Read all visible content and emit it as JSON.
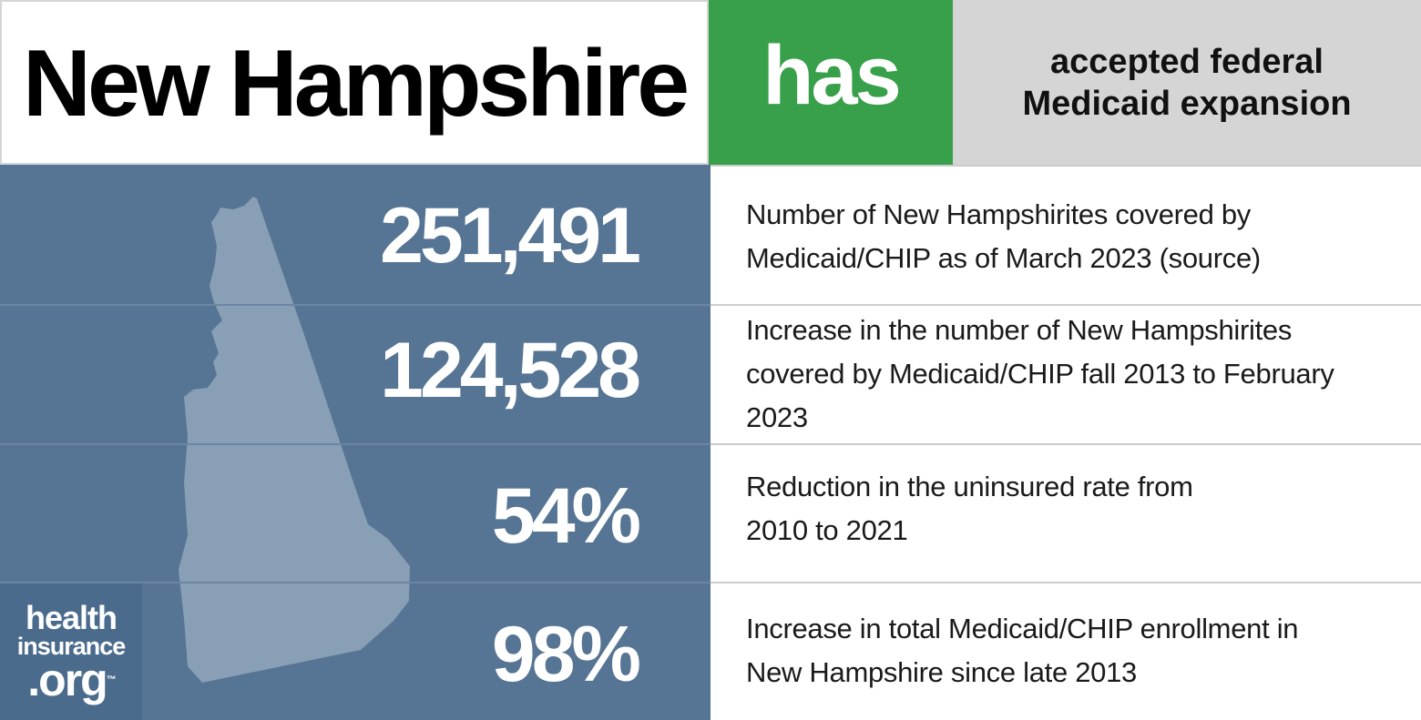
{
  "header": {
    "state": "New Hampshire",
    "status": "has",
    "description": "accepted federal Medicaid expansion"
  },
  "stats": [
    {
      "value": "251,491",
      "description": "Number of New Hampshirites covered by Medicaid/CHIP as of March 2023 (source)"
    },
    {
      "value": "124,528",
      "description": "Increase in the number of New Hampshirites covered by Medicaid/CHIP fall 2013 to February 2023"
    },
    {
      "value": "54%",
      "description": "Reduction in the uninsured rate from 2010 to 2021"
    },
    {
      "value": "98%",
      "description": "Increase in total Medicaid/CHIP enrollment in New Hampshire since late 2013"
    }
  ],
  "logo": {
    "line1": "health",
    "line2": "insurance",
    "line3": ".org",
    "mark": "™"
  },
  "colors": {
    "status_green": "#38a04a",
    "panel_blue": "#567493",
    "map_fill": "#899fb6",
    "logo_bg": "#4b6b8c"
  },
  "icons": {
    "map": "new-hampshire-state-silhouette"
  }
}
